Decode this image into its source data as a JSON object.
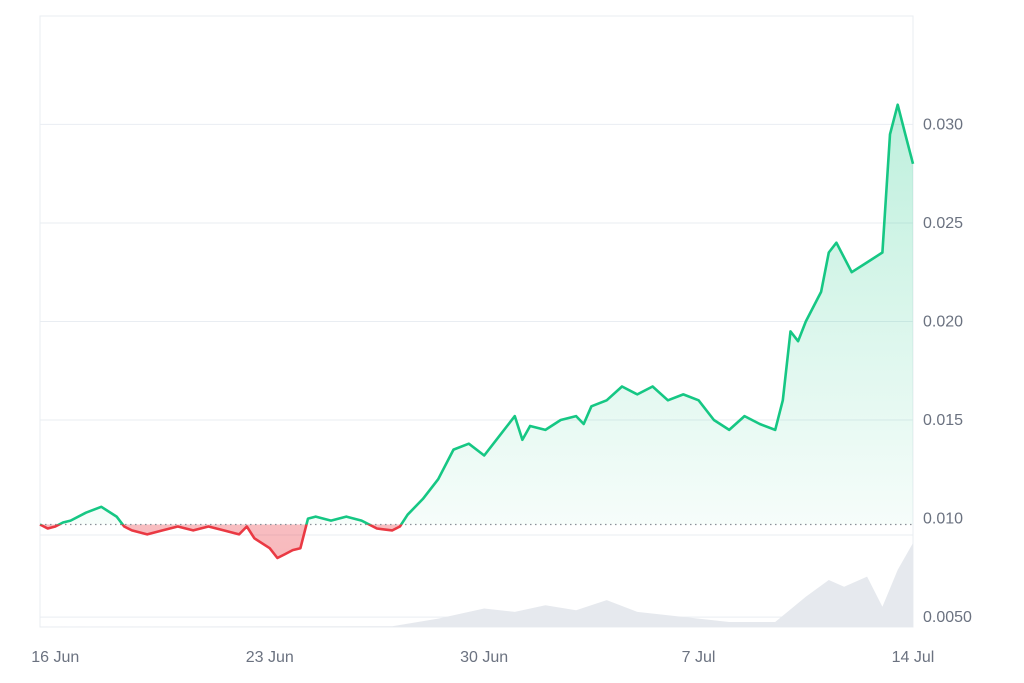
{
  "chart_data": {
    "type": "area",
    "baseline": 0.0097,
    "colors": {
      "up": "#16c784",
      "down": "#ea3943",
      "grid": "#e9edf2",
      "axis": "#6b7280",
      "volume": "#e6e9ee"
    },
    "y_ticks": [
      {
        "value": 0.005,
        "label": "0.0050"
      },
      {
        "value": 0.01,
        "label": "0.010"
      },
      {
        "value": 0.015,
        "label": "0.015"
      },
      {
        "value": 0.02,
        "label": "0.020"
      },
      {
        "value": 0.025,
        "label": "0.025"
      },
      {
        "value": 0.03,
        "label": "0.030"
      }
    ],
    "x_ticks": [
      {
        "value": "2024-06-16",
        "label": "16 Jun"
      },
      {
        "value": "2024-06-23",
        "label": "23 Jun"
      },
      {
        "value": "2024-06-30",
        "label": "30 Jun"
      },
      {
        "value": "2024-07-07",
        "label": "7 Jul"
      },
      {
        "value": "2024-07-14",
        "label": "14 Jul"
      }
    ],
    "x_range": [
      "2024-06-15T12:00",
      "2024-07-14T00:00"
    ],
    "price_range": [
      0.0045,
      0.0355
    ],
    "series": [
      {
        "kind": "price",
        "points": [
          [
            "2024-06-15T12:00",
            0.0097
          ],
          [
            "2024-06-15T18:00",
            0.0095
          ],
          [
            "2024-06-16T00:00",
            0.0096
          ],
          [
            "2024-06-16T06:00",
            0.0098
          ],
          [
            "2024-06-16T12:00",
            0.0099
          ],
          [
            "2024-06-17T00:00",
            0.0103
          ],
          [
            "2024-06-17T12:00",
            0.0106
          ],
          [
            "2024-06-18T00:00",
            0.0101
          ],
          [
            "2024-06-18T06:00",
            0.0096
          ],
          [
            "2024-06-18T12:00",
            0.0094
          ],
          [
            "2024-06-19T00:00",
            0.0092
          ],
          [
            "2024-06-19T12:00",
            0.0094
          ],
          [
            "2024-06-20T00:00",
            0.0096
          ],
          [
            "2024-06-20T12:00",
            0.0094
          ],
          [
            "2024-06-21T00:00",
            0.0096
          ],
          [
            "2024-06-21T12:00",
            0.0094
          ],
          [
            "2024-06-22T00:00",
            0.0092
          ],
          [
            "2024-06-22T06:00",
            0.0096
          ],
          [
            "2024-06-22T12:00",
            0.009
          ],
          [
            "2024-06-23T00:00",
            0.0085
          ],
          [
            "2024-06-23T06:00",
            0.008
          ],
          [
            "2024-06-23T12:00",
            0.0082
          ],
          [
            "2024-06-23T18:00",
            0.0084
          ],
          [
            "2024-06-24T00:00",
            0.0085
          ],
          [
            "2024-06-24T06:00",
            0.01
          ],
          [
            "2024-06-24T12:00",
            0.0101
          ],
          [
            "2024-06-25T00:00",
            0.0099
          ],
          [
            "2024-06-25T12:00",
            0.0101
          ],
          [
            "2024-06-26T00:00",
            0.0099
          ],
          [
            "2024-06-26T12:00",
            0.0095
          ],
          [
            "2024-06-27T00:00",
            0.0094
          ],
          [
            "2024-06-27T06:00",
            0.0096
          ],
          [
            "2024-06-27T12:00",
            0.0102
          ],
          [
            "2024-06-28T00:00",
            0.011
          ],
          [
            "2024-06-28T12:00",
            0.012
          ],
          [
            "2024-06-29T00:00",
            0.0135
          ],
          [
            "2024-06-29T12:00",
            0.0138
          ],
          [
            "2024-06-30T00:00",
            0.0132
          ],
          [
            "2024-06-30T12:00",
            0.0142
          ],
          [
            "2024-07-01T00:00",
            0.0152
          ],
          [
            "2024-07-01T06:00",
            0.014
          ],
          [
            "2024-07-01T12:00",
            0.0147
          ],
          [
            "2024-07-02T00:00",
            0.0145
          ],
          [
            "2024-07-02T12:00",
            0.015
          ],
          [
            "2024-07-03T00:00",
            0.0152
          ],
          [
            "2024-07-03T06:00",
            0.0148
          ],
          [
            "2024-07-03T12:00",
            0.0157
          ],
          [
            "2024-07-04T00:00",
            0.016
          ],
          [
            "2024-07-04T12:00",
            0.0167
          ],
          [
            "2024-07-05T00:00",
            0.0163
          ],
          [
            "2024-07-05T12:00",
            0.0167
          ],
          [
            "2024-07-06T00:00",
            0.016
          ],
          [
            "2024-07-06T12:00",
            0.0163
          ],
          [
            "2024-07-07T00:00",
            0.016
          ],
          [
            "2024-07-07T12:00",
            0.015
          ],
          [
            "2024-07-08T00:00",
            0.0145
          ],
          [
            "2024-07-08T12:00",
            0.0152
          ],
          [
            "2024-07-09T00:00",
            0.0148
          ],
          [
            "2024-07-09T12:00",
            0.0145
          ],
          [
            "2024-07-09T18:00",
            0.016
          ],
          [
            "2024-07-10T00:00",
            0.0195
          ],
          [
            "2024-07-10T06:00",
            0.019
          ],
          [
            "2024-07-10T12:00",
            0.02
          ],
          [
            "2024-07-11T00:00",
            0.0215
          ],
          [
            "2024-07-11T06:00",
            0.0235
          ],
          [
            "2024-07-11T12:00",
            0.024
          ],
          [
            "2024-07-12T00:00",
            0.0225
          ],
          [
            "2024-07-12T12:00",
            0.023
          ],
          [
            "2024-07-13T00:00",
            0.0235
          ],
          [
            "2024-07-13T06:00",
            0.0295
          ],
          [
            "2024-07-13T12:00",
            0.031
          ],
          [
            "2024-07-13T18:00",
            0.0295
          ],
          [
            "2024-07-14T00:00",
            0.028
          ]
        ]
      },
      {
        "kind": "volume",
        "max": 0.005,
        "points": [
          [
            "2024-06-15T12:00",
            2e-05
          ],
          [
            "2024-06-20T00:00",
            3e-05
          ],
          [
            "2024-06-27T00:00",
            5e-05
          ],
          [
            "2024-06-28T12:00",
            0.0005
          ],
          [
            "2024-06-30T00:00",
            0.0011
          ],
          [
            "2024-07-01T00:00",
            0.0009
          ],
          [
            "2024-07-02T00:00",
            0.0013
          ],
          [
            "2024-07-03T00:00",
            0.001
          ],
          [
            "2024-07-04T00:00",
            0.0016
          ],
          [
            "2024-07-05T00:00",
            0.0009
          ],
          [
            "2024-07-06T00:00",
            0.0007
          ],
          [
            "2024-07-08T00:00",
            0.0003
          ],
          [
            "2024-07-09T12:00",
            0.0003
          ],
          [
            "2024-07-10T12:00",
            0.0018
          ],
          [
            "2024-07-11T06:00",
            0.0028
          ],
          [
            "2024-07-11T18:00",
            0.0024
          ],
          [
            "2024-07-12T12:00",
            0.003
          ],
          [
            "2024-07-13T00:00",
            0.0012
          ],
          [
            "2024-07-13T12:00",
            0.0034
          ],
          [
            "2024-07-14T00:00",
            0.005
          ]
        ]
      }
    ]
  }
}
